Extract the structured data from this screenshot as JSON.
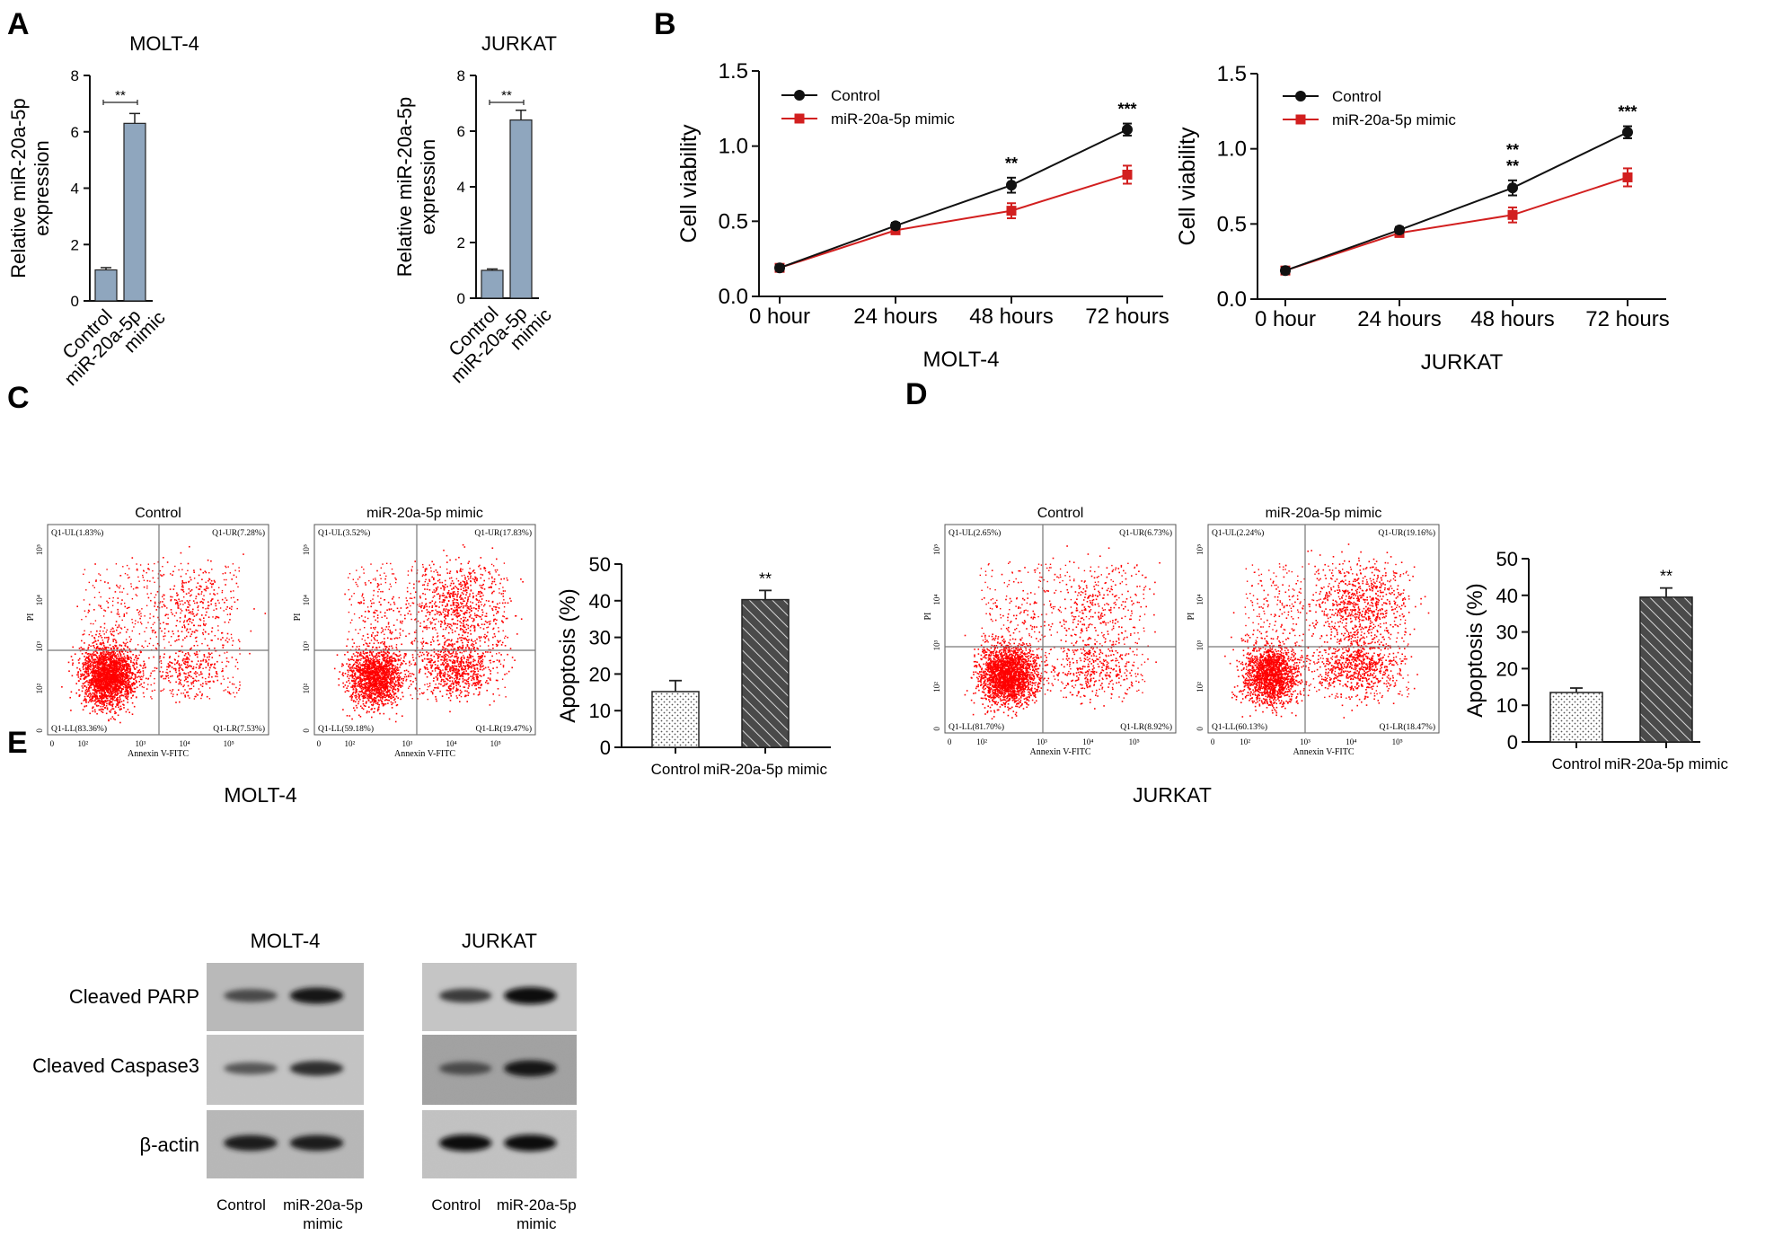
{
  "panel_letters": [
    "A",
    "B",
    "C",
    "D",
    "E"
  ],
  "colors": {
    "bar_blue": "#8fa6be",
    "control_line": "#111111",
    "mimic_line": "#d21f1f",
    "dots": "#ff0000",
    "gate": "#777777"
  },
  "chart_data": [
    {
      "id": "A-molt4",
      "type": "bar",
      "title": "MOLT-4",
      "ylabel": "Relative miR-20a-5p expression",
      "ylabel_lines": [
        "Relative miR-20a-5p",
        "expression"
      ],
      "ylim": [
        0,
        8
      ],
      "yticks": [
        0,
        2,
        4,
        6,
        8
      ],
      "categories": [
        "Control",
        "miR-20a-5p mimic"
      ],
      "category_lines": [
        [
          "Control"
        ],
        [
          "miR-20a-5p",
          "mimic"
        ]
      ],
      "values": [
        1.1,
        6.3
      ],
      "errors": [
        0.08,
        0.35
      ],
      "significance": "**"
    },
    {
      "id": "A-jurkat",
      "type": "bar",
      "title": "JURKAT",
      "ylabel": "Relative miR-20a-5p expression",
      "ylabel_lines": [
        "Relative miR-20a-5p",
        "expression"
      ],
      "ylim": [
        0,
        8
      ],
      "yticks": [
        0,
        2,
        4,
        6,
        8
      ],
      "categories": [
        "Control",
        "miR-20a-5p mimic"
      ],
      "category_lines": [
        [
          "Control"
        ],
        [
          "miR-20a-5p",
          "mimic"
        ]
      ],
      "values": [
        1.0,
        6.4
      ],
      "errors": [
        0.05,
        0.35
      ],
      "significance": "**"
    },
    {
      "id": "B-molt4",
      "type": "line",
      "xlabel": "MOLT-4",
      "ylabel": "Cell viability",
      "ylim": [
        0,
        1.5
      ],
      "yticks": [
        "0.0",
        "0.5",
        "1.0",
        "1.5"
      ],
      "categories": [
        "0 hour",
        "24 hours",
        "48 hours",
        "72 hours"
      ],
      "series": [
        {
          "name": "Control",
          "values": [
            0.19,
            0.47,
            0.74,
            1.11
          ],
          "errors": [
            0.02,
            0.02,
            0.05,
            0.04
          ]
        },
        {
          "name": "miR-20a-5p mimic",
          "values": [
            0.19,
            0.44,
            0.57,
            0.81
          ],
          "errors": [
            0.02,
            0.02,
            0.05,
            0.06
          ]
        }
      ],
      "annotations": [
        "",
        "",
        "**",
        "***"
      ],
      "legend": "top-left"
    },
    {
      "id": "B-jurkat",
      "type": "line",
      "xlabel": "JURKAT",
      "ylabel": "Cell viability",
      "ylim": [
        0,
        1.5
      ],
      "yticks": [
        "0.0",
        "0.5",
        "1.0",
        "1.5"
      ],
      "categories": [
        "0 hour",
        "24 hours",
        "48 hours",
        "72 hours"
      ],
      "series": [
        {
          "name": "Control",
          "values": [
            0.19,
            0.46,
            0.74,
            1.11
          ],
          "errors": [
            0.02,
            0.02,
            0.05,
            0.04
          ]
        },
        {
          "name": "miR-20a-5p mimic",
          "values": [
            0.19,
            0.44,
            0.56,
            0.81
          ],
          "errors": [
            0.02,
            0.02,
            0.05,
            0.06
          ]
        }
      ],
      "annotations": [
        "",
        "",
        "**\n**",
        "***"
      ],
      "legend": "top-left"
    },
    {
      "id": "C-apoptosis",
      "type": "bar",
      "ylabel": "Apoptosis (%)",
      "ylim": [
        0,
        50
      ],
      "yticks": [
        0,
        10,
        20,
        30,
        40,
        50
      ],
      "categories": [
        "Control",
        "miR-20a-5p mimic"
      ],
      "values": [
        15.2,
        40.3
      ],
      "errors": [
        3.0,
        2.5
      ],
      "significance": "**",
      "patterns": [
        "dots",
        "hatch"
      ]
    },
    {
      "id": "D-apoptosis",
      "type": "bar",
      "ylabel": "Apoptosis (%)",
      "ylim": [
        0,
        50
      ],
      "yticks": [
        0,
        10,
        20,
        30,
        40,
        50
      ],
      "categories": [
        "Control",
        "miR-20a-5p mimic"
      ],
      "values": [
        13.5,
        39.5
      ],
      "errors": [
        1.2,
        2.5
      ],
      "significance": "**",
      "patterns": [
        "dots",
        "hatch"
      ]
    }
  ],
  "flow_cytometry": {
    "x_axis_label": "Annexin V-FITC",
    "y_axis_label": "PI",
    "tick_labels": [
      "0",
      "10²",
      "10³",
      "10⁴",
      "10⁵"
    ],
    "groups": [
      {
        "cell_line": "MOLT-4",
        "plots": [
          {
            "title": "Control",
            "UL": "Q1-UL(1.83%)",
            "UR": "Q1-UR(7.28%)",
            "LL": "Q1-LL(83.36%)",
            "LR": "Q1-LR(7.53%)"
          },
          {
            "title": "miR-20a-5p mimic",
            "UL": "Q1-UL(3.52%)",
            "UR": "Q1-UR(17.83%)",
            "LL": "Q1-LL(59.18%)",
            "LR": "Q1-LR(19.47%)"
          }
        ]
      },
      {
        "cell_line": "JURKAT",
        "plots": [
          {
            "title": "Control",
            "UL": "Q1-UL(2.65%)",
            "UR": "Q1-UR(6.73%)",
            "LL": "Q1-LL(81.70%)",
            "LR": "Q1-LR(8.92%)"
          },
          {
            "title": "miR-20a-5p mimic",
            "UL": "Q1-UL(2.24%)",
            "UR": "Q1-UR(19.16%)",
            "LL": "Q1-LL(60.13%)",
            "LR": "Q1-LR(18.47%)"
          }
        ]
      }
    ]
  },
  "western": {
    "proteins": [
      "Cleaved PARP",
      "Cleaved Caspase3",
      "β-actin"
    ],
    "blots": [
      {
        "cell_line": "MOLT-4",
        "lanes": [
          "Control",
          "miR-20a-5p mimic"
        ],
        "lane_lines": [
          [
            "Control"
          ],
          [
            "miR-20a-5p",
            "mimic"
          ]
        ]
      },
      {
        "cell_line": "JURKAT",
        "lanes": [
          "Control",
          "miR-20a-5p mimic"
        ],
        "lane_lines": [
          [
            "Control"
          ],
          [
            "miR-20a-5p",
            "mimic"
          ]
        ]
      }
    ]
  }
}
